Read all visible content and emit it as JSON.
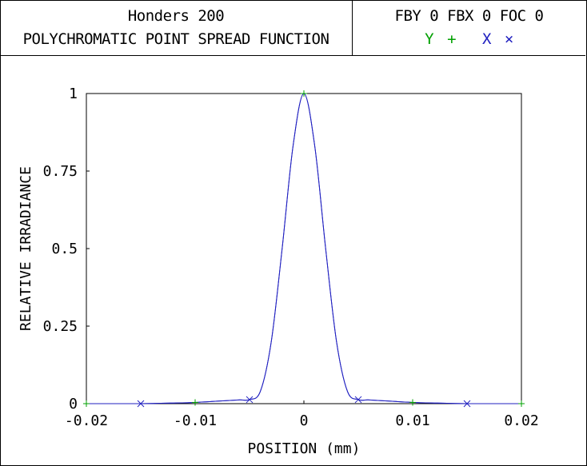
{
  "header": {
    "title_line1": "Honders 200",
    "title_line2": "POLYCHROMATIC POINT SPREAD FUNCTION",
    "params": "FBY 0 FBX 0 FOC 0",
    "legend_y_label": "Y",
    "legend_y_marker": "+",
    "legend_x_label": "X",
    "legend_x_marker": "×"
  },
  "colors": {
    "curve": "#2020c0",
    "y_series": "#00a000",
    "x_series": "#2020c0"
  },
  "chart_data": {
    "type": "line",
    "title": "POLYCHROMATIC POINT SPREAD FUNCTION",
    "xlabel": "POSITION (mm)",
    "ylabel": "RELATIVE IRRADIANCE",
    "xlim": [
      -0.02,
      0.02
    ],
    "ylim": [
      0,
      1
    ],
    "xticks": [
      "-0.02",
      "-0.01",
      "0",
      "0.01",
      "0.02"
    ],
    "yticks": [
      "0",
      "0.25",
      "0.5",
      "0.75",
      "1"
    ],
    "grid": false,
    "series": [
      {
        "name": "Y",
        "marker": "+",
        "x": [
          -0.02,
          -0.018,
          -0.015,
          -0.012,
          -0.01,
          -0.008,
          -0.006,
          -0.005,
          -0.004,
          -0.003,
          -0.002,
          -0.001,
          0,
          0.001,
          0.002,
          0.003,
          0.004,
          0.005,
          0.006,
          0.008,
          0.01,
          0.012,
          0.015,
          0.018,
          0.02
        ],
        "y": [
          0,
          0,
          0,
          0.002,
          0.004,
          0.008,
          0.012,
          0.013,
          0.04,
          0.2,
          0.5,
          0.83,
          1.0,
          0.83,
          0.5,
          0.2,
          0.04,
          0.013,
          0.012,
          0.008,
          0.004,
          0.002,
          0,
          0,
          0
        ],
        "marker_x": [
          -0.02,
          -0.01,
          0,
          0.01,
          0.02
        ]
      },
      {
        "name": "X",
        "marker": "×",
        "x": [
          -0.02,
          -0.018,
          -0.015,
          -0.012,
          -0.01,
          -0.008,
          -0.006,
          -0.005,
          -0.004,
          -0.003,
          -0.002,
          -0.001,
          0,
          0.001,
          0.002,
          0.003,
          0.004,
          0.005,
          0.006,
          0.008,
          0.01,
          0.012,
          0.015,
          0.018,
          0.02
        ],
        "y": [
          0,
          0,
          0,
          0.002,
          0.004,
          0.008,
          0.012,
          0.013,
          0.04,
          0.2,
          0.5,
          0.83,
          1.0,
          0.83,
          0.5,
          0.2,
          0.04,
          0.013,
          0.012,
          0.008,
          0.004,
          0.002,
          0,
          0,
          0
        ],
        "marker_x": [
          -0.015,
          -0.005,
          0.005,
          0.015
        ]
      }
    ]
  }
}
